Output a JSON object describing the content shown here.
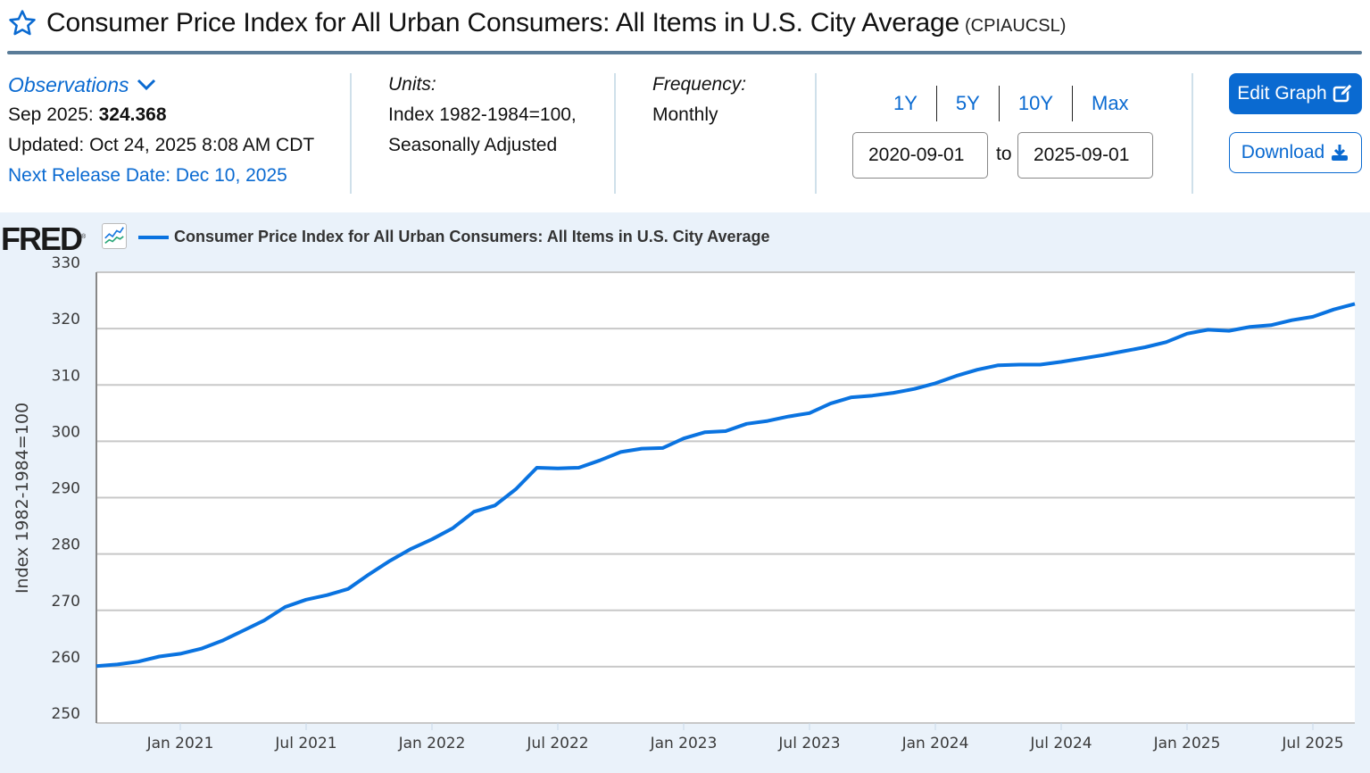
{
  "header": {
    "title": "Consumer Price Index for All Urban Consumers: All Items in U.S. City Average",
    "series_id": "(CPIAUCSL)",
    "star_icon": "star-outline-icon"
  },
  "observations": {
    "label": "Observations",
    "latest_period": "Sep 2025:",
    "latest_value": "324.368",
    "updated": "Updated: Oct 24, 2025 8:08 AM CDT",
    "next_release": "Next Release Date: Dec 10, 2025"
  },
  "units": {
    "label": "Units:",
    "line1": "Index 1982-1984=100,",
    "line2": "Seasonally Adjusted"
  },
  "frequency": {
    "label": "Frequency:",
    "value": "Monthly"
  },
  "range": {
    "links": [
      "1Y",
      "5Y",
      "10Y",
      "Max"
    ],
    "start": "2020-09-01",
    "to_label": "to",
    "end": "2025-09-01"
  },
  "buttons": {
    "edit_graph": "Edit Graph",
    "download": "Download"
  },
  "colors": {
    "accent": "#0a6ad1",
    "series_line": "#0a73e0",
    "chart_bg": "#eaf2fa",
    "title_rule": "#5a7c98"
  },
  "chart_data": {
    "type": "line",
    "title": "Consumer Price Index for All Urban Consumers: All Items in U.S. City Average",
    "logo": "FRED",
    "xlabel": "",
    "ylabel": "Index 1982-1984=100",
    "ylim": [
      250,
      330
    ],
    "yticks": [
      250,
      260,
      270,
      280,
      290,
      300,
      310,
      320,
      330
    ],
    "grid": true,
    "legend": "top-left",
    "x_start": "2020-09",
    "x_end": "2025-09",
    "xticks": [
      {
        "label": "Jan 2021",
        "month_index": 4
      },
      {
        "label": "Jul 2021",
        "month_index": 10
      },
      {
        "label": "Jan 2022",
        "month_index": 16
      },
      {
        "label": "Jul 2022",
        "month_index": 22
      },
      {
        "label": "Jan 2023",
        "month_index": 28
      },
      {
        "label": "Jul 2023",
        "month_index": 34
      },
      {
        "label": "Jan 2024",
        "month_index": 40
      },
      {
        "label": "Jul 2024",
        "month_index": 46
      },
      {
        "label": "Jan 2025",
        "month_index": 52
      },
      {
        "label": "Jul 2025",
        "month_index": 58
      }
    ],
    "series": [
      {
        "name": "Consumer Price Index for All Urban Consumers: All Items in U.S. City Average",
        "x": [
          "2020-09",
          "2020-10",
          "2020-11",
          "2020-12",
          "2021-01",
          "2021-02",
          "2021-03",
          "2021-04",
          "2021-05",
          "2021-06",
          "2021-07",
          "2021-08",
          "2021-09",
          "2021-10",
          "2021-11",
          "2021-12",
          "2022-01",
          "2022-02",
          "2022-03",
          "2022-04",
          "2022-05",
          "2022-06",
          "2022-07",
          "2022-08",
          "2022-09",
          "2022-10",
          "2022-11",
          "2022-12",
          "2023-01",
          "2023-02",
          "2023-03",
          "2023-04",
          "2023-05",
          "2023-06",
          "2023-07",
          "2023-08",
          "2023-09",
          "2023-10",
          "2023-11",
          "2023-12",
          "2024-01",
          "2024-02",
          "2024-03",
          "2024-04",
          "2024-05",
          "2024-06",
          "2024-07",
          "2024-08",
          "2024-09",
          "2024-10",
          "2024-11",
          "2024-12",
          "2025-01",
          "2025-02",
          "2025-03",
          "2025-04",
          "2025-05",
          "2025-06",
          "2025-07",
          "2025-08",
          "2025-09"
        ],
        "values": [
          260.1,
          260.4,
          260.9,
          261.8,
          262.3,
          263.2,
          264.6,
          266.4,
          268.2,
          270.6,
          271.9,
          272.7,
          273.8,
          276.4,
          278.8,
          280.9,
          282.6,
          284.6,
          287.5,
          288.6,
          291.5,
          295.3,
          295.2,
          295.3,
          296.6,
          298.1,
          298.7,
          298.8,
          300.5,
          301.6,
          301.8,
          303.1,
          303.6,
          304.4,
          305.0,
          306.7,
          307.8,
          308.1,
          308.6,
          309.3,
          310.3,
          311.6,
          312.7,
          313.5,
          313.6,
          313.6,
          314.1,
          314.7,
          315.3,
          316.0,
          316.7,
          317.6,
          319.1,
          319.8,
          319.6,
          320.3,
          320.6,
          321.5,
          322.1,
          323.4,
          324.4
        ]
      }
    ]
  }
}
